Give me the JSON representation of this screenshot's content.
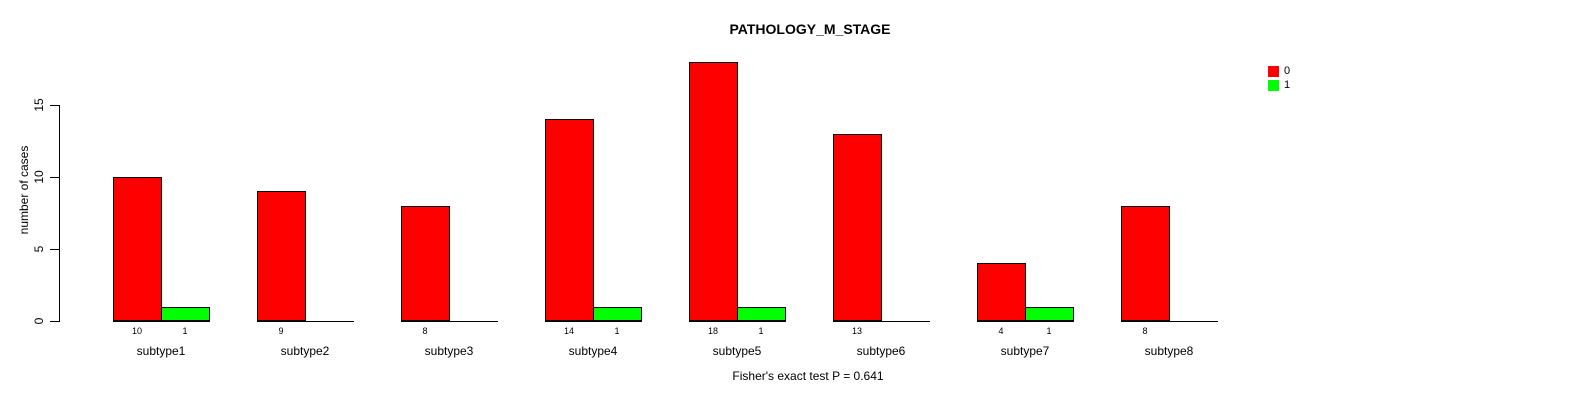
{
  "chart_data": {
    "type": "bar",
    "title": "PATHOLOGY_M_STAGE",
    "ylabel": "number of cases",
    "xlabel": "",
    "categories": [
      "subtype1",
      "subtype2",
      "subtype3",
      "subtype4",
      "subtype5",
      "subtype6",
      "subtype7",
      "subtype8"
    ],
    "series": [
      {
        "name": "0",
        "color": "#FF0000",
        "values": [
          10,
          9,
          8,
          14,
          18,
          13,
          4,
          8
        ]
      },
      {
        "name": "1",
        "color": "#00FF00",
        "values": [
          1,
          0,
          0,
          1,
          1,
          0,
          1,
          0
        ]
      }
    ],
    "yticks": [
      0,
      5,
      10,
      15
    ],
    "ylim": [
      0,
      15
    ],
    "grid": false,
    "legend_position": "top-right",
    "bar_value_labels": "shown under each bar, zeros omitted",
    "annotation": "Fisher's exact test P = 0.641"
  }
}
